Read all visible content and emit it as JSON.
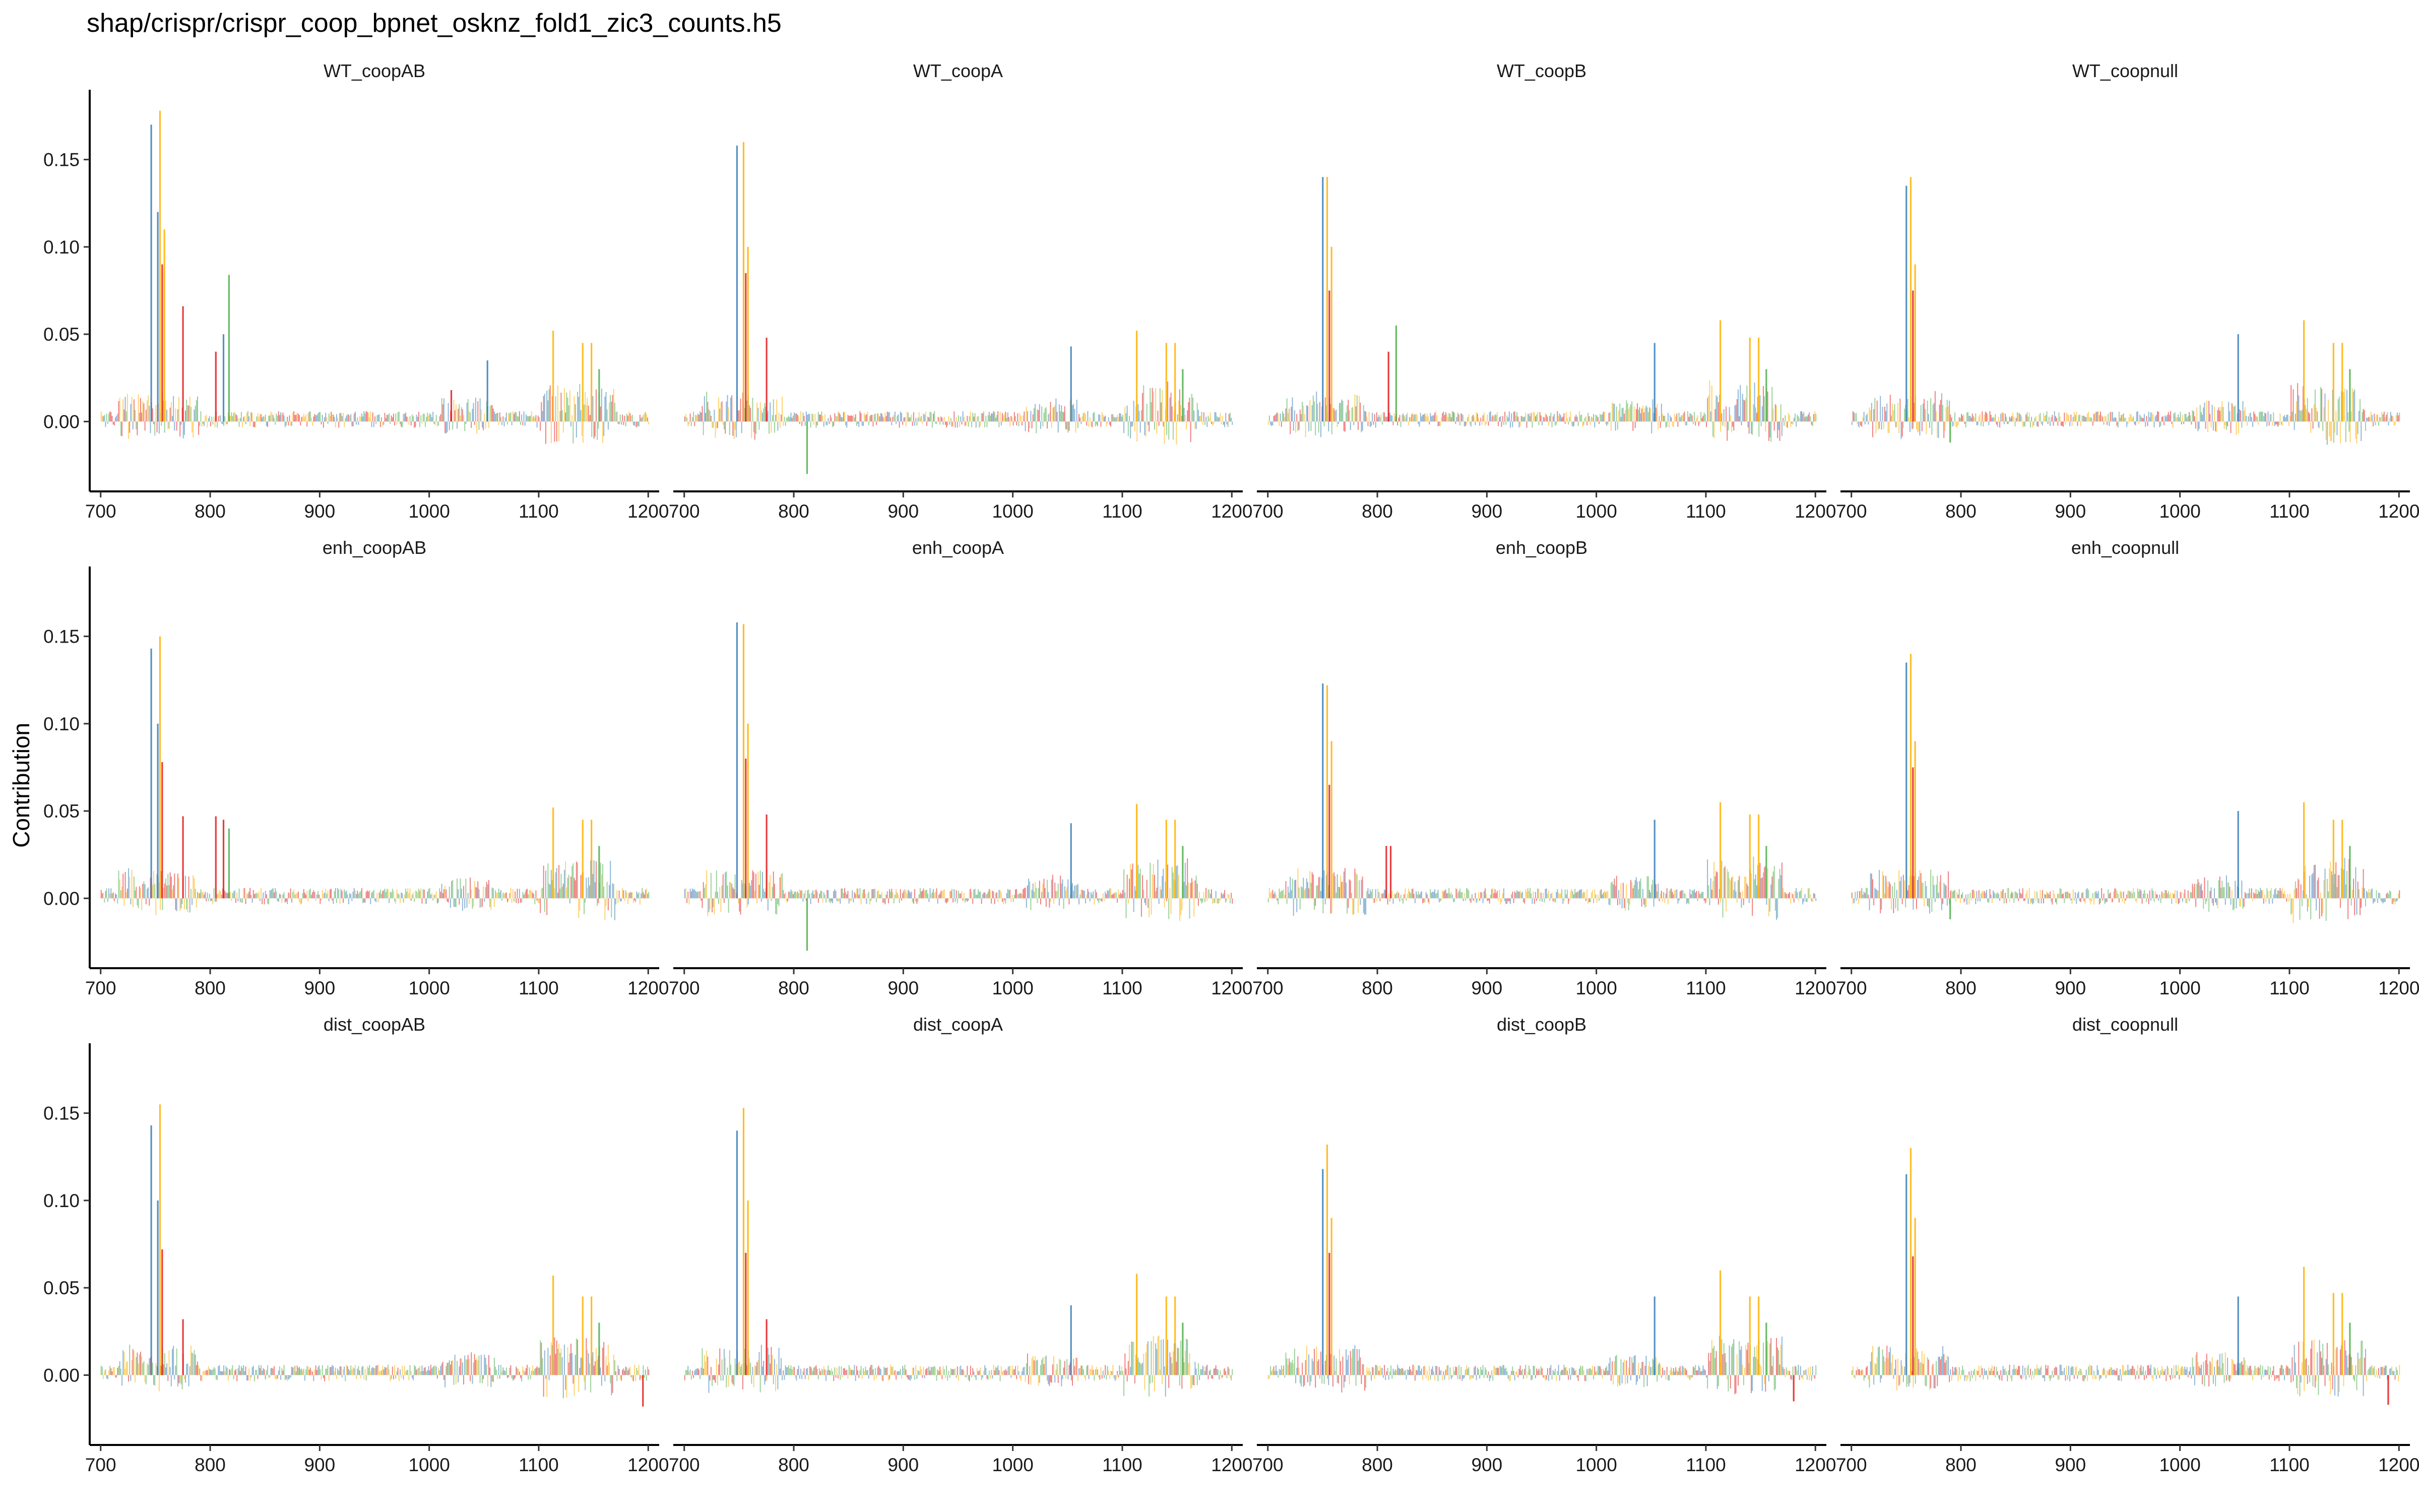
{
  "figure": {
    "title": "shap/crispr/crispr_coop_bpnet_osknz_fold1_zic3_counts.h5",
    "ylabel": "Contribution"
  },
  "chart_data": {
    "type": "bar",
    "subtype": "sequence-logo contribution tracks (faceted 3×4)",
    "title": "shap/crispr/crispr_coop_bpnet_osknz_fold1_zic3_counts.h5",
    "xlabel": "",
    "ylabel": "Contribution",
    "xlim": [
      690,
      1210
    ],
    "ylim": [
      -0.04,
      0.19
    ],
    "xticks": [
      700,
      800,
      900,
      1000,
      1100,
      1200
    ],
    "yticks": [
      0.0,
      0.05,
      0.1,
      0.15
    ],
    "ytick_labels": [
      "0.00",
      "0.05",
      "0.10",
      "0.15"
    ],
    "grid": false,
    "legend": "none",
    "base_colors": {
      "A": "#4daf4a",
      "C": "#377eb8",
      "G": "#ffb000",
      "T": "#e41a1c"
    },
    "peaks_description": "approximate peak (position, base, height) per panel",
    "panels": [
      {
        "title": "WT_coopAB",
        "peaks": [
          [
            746,
            "C",
            0.17
          ],
          [
            752,
            "C",
            0.12
          ],
          [
            754,
            "G",
            0.178
          ],
          [
            756,
            "T",
            0.09
          ],
          [
            758,
            "G",
            0.11
          ],
          [
            775,
            "T",
            0.066
          ],
          [
            805,
            "T",
            0.04
          ],
          [
            812,
            "C",
            0.05
          ],
          [
            817,
            "A",
            0.084
          ],
          [
            1113,
            "G",
            0.052
          ],
          [
            1140,
            "G",
            0.045
          ],
          [
            1148,
            "G",
            0.045
          ],
          [
            1155,
            "A",
            0.03
          ],
          [
            1053,
            "C",
            0.035
          ],
          [
            1020,
            "T",
            0.018
          ]
        ]
      },
      {
        "title": "WT_coopA",
        "peaks": [
          [
            748,
            "C",
            0.158
          ],
          [
            754,
            "G",
            0.16
          ],
          [
            756,
            "T",
            0.085
          ],
          [
            758,
            "G",
            0.1
          ],
          [
            775,
            "T",
            0.048
          ],
          [
            812,
            "A",
            -0.03
          ],
          [
            1053,
            "C",
            0.043
          ],
          [
            1113,
            "G",
            0.052
          ],
          [
            1140,
            "G",
            0.045
          ],
          [
            1148,
            "G",
            0.045
          ],
          [
            1155,
            "A",
            0.03
          ]
        ]
      },
      {
        "title": "WT_coopB",
        "peaks": [
          [
            750,
            "C",
            0.14
          ],
          [
            754,
            "G",
            0.14
          ],
          [
            756,
            "T",
            0.075
          ],
          [
            758,
            "G",
            0.1
          ],
          [
            810,
            "T",
            0.04
          ],
          [
            817,
            "A",
            0.055
          ],
          [
            1053,
            "C",
            0.045
          ],
          [
            1113,
            "G",
            0.058
          ],
          [
            1140,
            "G",
            0.048
          ],
          [
            1148,
            "G",
            0.048
          ],
          [
            1155,
            "A",
            0.03
          ]
        ]
      },
      {
        "title": "WT_coopnull",
        "peaks": [
          [
            750,
            "C",
            0.135
          ],
          [
            754,
            "G",
            0.14
          ],
          [
            756,
            "T",
            0.075
          ],
          [
            758,
            "G",
            0.09
          ],
          [
            790,
            "A",
            -0.012
          ],
          [
            1053,
            "C",
            0.05
          ],
          [
            1113,
            "G",
            0.058
          ],
          [
            1140,
            "G",
            0.045
          ],
          [
            1148,
            "G",
            0.045
          ],
          [
            1155,
            "A",
            0.03
          ]
        ]
      },
      {
        "title": "enh_coopAB",
        "peaks": [
          [
            746,
            "C",
            0.143
          ],
          [
            752,
            "C",
            0.1
          ],
          [
            754,
            "G",
            0.15
          ],
          [
            756,
            "T",
            0.078
          ],
          [
            775,
            "T",
            0.047
          ],
          [
            805,
            "T",
            0.047
          ],
          [
            812,
            "T",
            0.045
          ],
          [
            817,
            "A",
            0.04
          ],
          [
            1113,
            "G",
            0.052
          ],
          [
            1140,
            "G",
            0.045
          ],
          [
            1148,
            "G",
            0.045
          ],
          [
            1155,
            "A",
            0.03
          ]
        ]
      },
      {
        "title": "enh_coopA",
        "peaks": [
          [
            748,
            "C",
            0.158
          ],
          [
            754,
            "G",
            0.157
          ],
          [
            756,
            "T",
            0.08
          ],
          [
            758,
            "G",
            0.1
          ],
          [
            775,
            "T",
            0.048
          ],
          [
            812,
            "A",
            -0.03
          ],
          [
            1053,
            "C",
            0.043
          ],
          [
            1113,
            "G",
            0.054
          ],
          [
            1140,
            "G",
            0.045
          ],
          [
            1148,
            "G",
            0.045
          ],
          [
            1155,
            "A",
            0.03
          ]
        ]
      },
      {
        "title": "enh_coopB",
        "peaks": [
          [
            750,
            "C",
            0.123
          ],
          [
            754,
            "G",
            0.122
          ],
          [
            756,
            "T",
            0.065
          ],
          [
            758,
            "G",
            0.09
          ],
          [
            808,
            "T",
            0.03
          ],
          [
            812,
            "T",
            0.03
          ],
          [
            1053,
            "C",
            0.045
          ],
          [
            1113,
            "G",
            0.055
          ],
          [
            1140,
            "G",
            0.048
          ],
          [
            1148,
            "G",
            0.048
          ],
          [
            1155,
            "A",
            0.03
          ]
        ]
      },
      {
        "title": "enh_coopnull",
        "peaks": [
          [
            750,
            "C",
            0.135
          ],
          [
            754,
            "G",
            0.14
          ],
          [
            756,
            "T",
            0.075
          ],
          [
            758,
            "G",
            0.09
          ],
          [
            790,
            "A",
            -0.012
          ],
          [
            1053,
            "C",
            0.05
          ],
          [
            1113,
            "G",
            0.055
          ],
          [
            1140,
            "G",
            0.045
          ],
          [
            1148,
            "G",
            0.045
          ],
          [
            1155,
            "A",
            0.03
          ]
        ]
      },
      {
        "title": "dist_coopAB",
        "peaks": [
          [
            746,
            "C",
            0.143
          ],
          [
            752,
            "C",
            0.1
          ],
          [
            754,
            "G",
            0.155
          ],
          [
            756,
            "T",
            0.072
          ],
          [
            775,
            "T",
            0.032
          ],
          [
            1113,
            "G",
            0.057
          ],
          [
            1140,
            "G",
            0.045
          ],
          [
            1148,
            "G",
            0.045
          ],
          [
            1155,
            "A",
            0.03
          ],
          [
            1195,
            "T",
            -0.018
          ]
        ]
      },
      {
        "title": "dist_coopA",
        "peaks": [
          [
            748,
            "C",
            0.14
          ],
          [
            754,
            "G",
            0.153
          ],
          [
            756,
            "T",
            0.07
          ],
          [
            758,
            "G",
            0.1
          ],
          [
            775,
            "T",
            0.032
          ],
          [
            1053,
            "C",
            0.04
          ],
          [
            1113,
            "G",
            0.058
          ],
          [
            1140,
            "G",
            0.045
          ],
          [
            1148,
            "G",
            0.045
          ],
          [
            1155,
            "A",
            0.03
          ]
        ]
      },
      {
        "title": "dist_coopB",
        "peaks": [
          [
            750,
            "C",
            0.118
          ],
          [
            754,
            "G",
            0.132
          ],
          [
            756,
            "T",
            0.07
          ],
          [
            758,
            "G",
            0.09
          ],
          [
            1053,
            "C",
            0.045
          ],
          [
            1113,
            "G",
            0.06
          ],
          [
            1140,
            "G",
            0.045
          ],
          [
            1148,
            "G",
            0.045
          ],
          [
            1155,
            "A",
            0.03
          ],
          [
            1180,
            "T",
            -0.015
          ]
        ]
      },
      {
        "title": "dist_coopnull",
        "peaks": [
          [
            750,
            "C",
            0.115
          ],
          [
            754,
            "G",
            0.13
          ],
          [
            756,
            "T",
            0.068
          ],
          [
            758,
            "G",
            0.09
          ],
          [
            1053,
            "C",
            0.045
          ],
          [
            1113,
            "G",
            0.062
          ],
          [
            1140,
            "G",
            0.047
          ],
          [
            1148,
            "G",
            0.047
          ],
          [
            1155,
            "A",
            0.03
          ],
          [
            1190,
            "T",
            -0.017
          ]
        ]
      }
    ]
  }
}
